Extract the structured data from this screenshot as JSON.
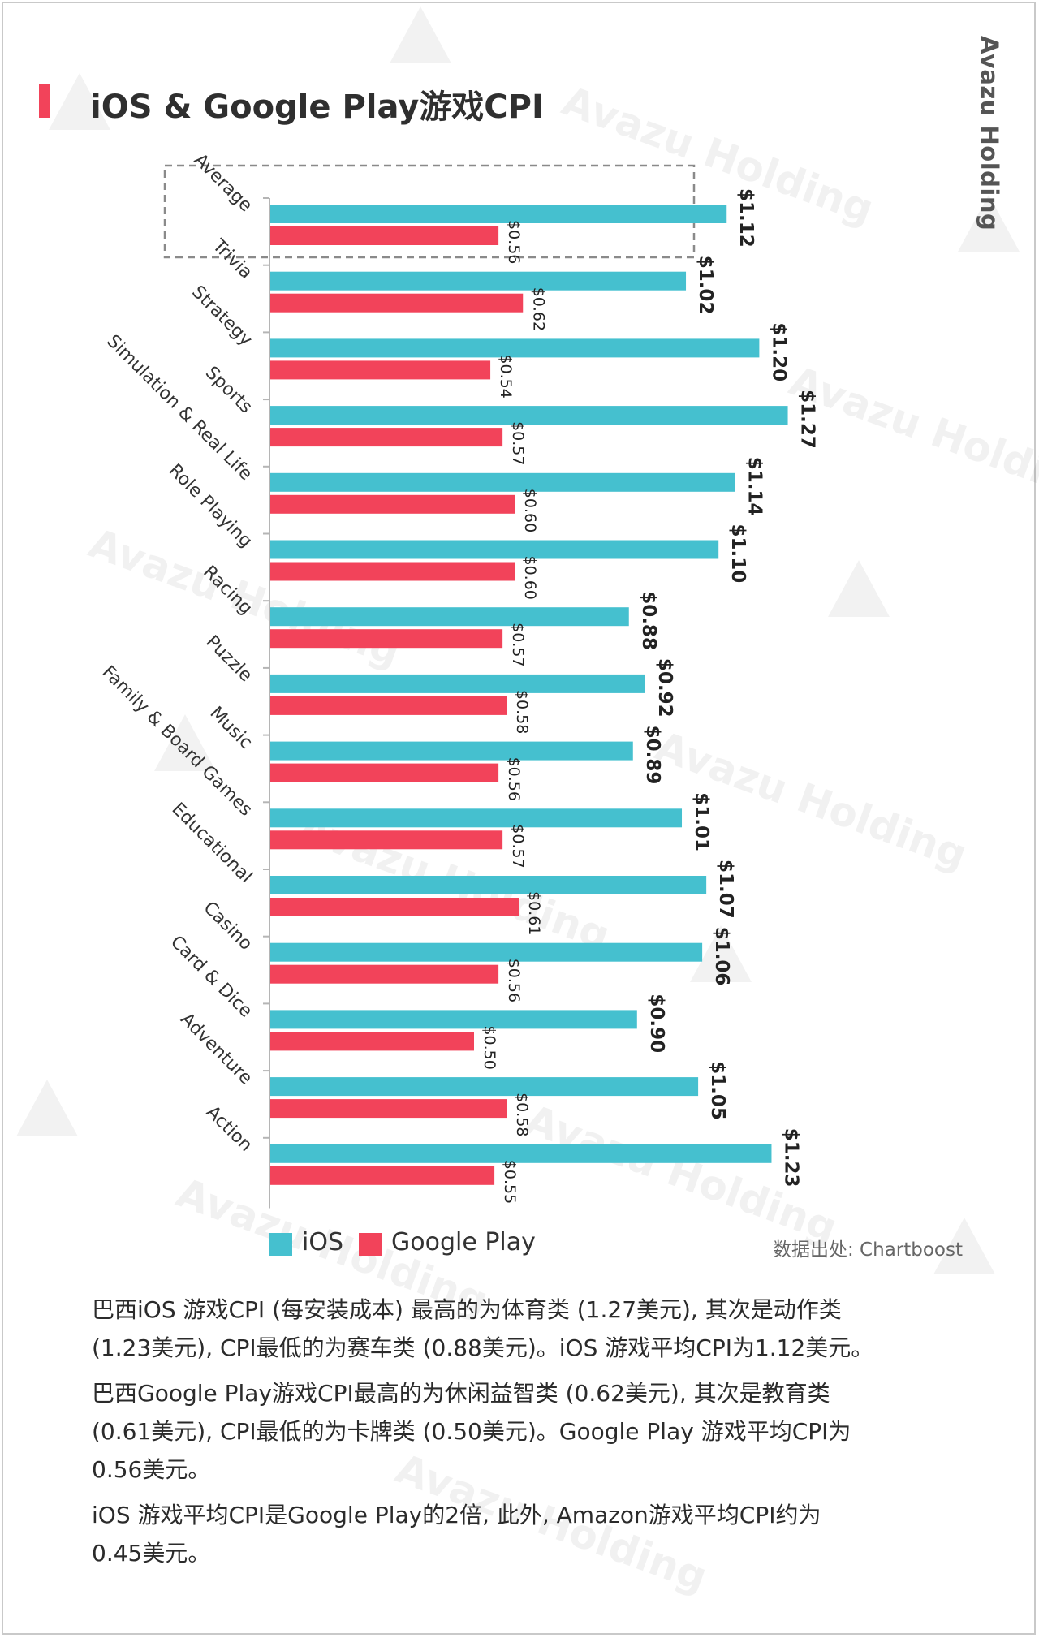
{
  "brand": "Avazu Holding",
  "title": "iOS & Google Play游戏CPI",
  "colors": {
    "ios": "#45c0cf",
    "google_play": "#f2435a",
    "accent": "#f2435a"
  },
  "chart_data": {
    "type": "bar",
    "orientation": "horizontal",
    "categories": [
      "Average",
      "Trivia",
      "Strategy",
      "Sports",
      "Simulation & Real Life",
      "Role Playing",
      "Racing",
      "Puzzle",
      "Music",
      "Family & Board Games",
      "Educational",
      "Casino",
      "Card & Dice",
      "Adventure",
      "Action"
    ],
    "series": [
      {
        "name": "iOS",
        "values": [
          1.12,
          1.02,
          1.2,
          1.27,
          1.14,
          1.1,
          0.88,
          0.92,
          0.89,
          1.01,
          1.07,
          1.06,
          0.9,
          1.05,
          1.23
        ],
        "labels": [
          "$1.12",
          "$1.02",
          "$1.20",
          "$1.27",
          "$1.14",
          "$1.10",
          "$0.88",
          "$0.92",
          "$0.89",
          "$1.01",
          "$1.07",
          "$1.06",
          "$0.90",
          "$1.05",
          "$1.23"
        ]
      },
      {
        "name": "Google Play",
        "values": [
          0.56,
          0.62,
          0.54,
          0.57,
          0.6,
          0.6,
          0.57,
          0.58,
          0.56,
          0.57,
          0.61,
          0.56,
          0.5,
          0.58,
          0.55
        ],
        "labels": [
          "$0.56",
          "$0.62",
          "$0.54",
          "$0.57",
          "$0.60",
          "$0.60",
          "$0.57",
          "$0.58",
          "$0.56",
          "$0.57",
          "$0.61",
          "$0.56",
          "$0.50",
          "$0.58",
          "$0.55"
        ]
      }
    ],
    "highlighted_category": "Average",
    "legend_position": "bottom-left",
    "grid": false
  },
  "legend": {
    "ios": "iOS",
    "google_play": "Google Play"
  },
  "source": "数据出处: Chartboost",
  "notes": [
    "巴西iOS 游戏CPI (每安装成本) 最高的为体育类 (1.27美元), 其次是动作类\n(1.23美元), CPI最低的为赛车类 (0.88美元)。iOS 游戏平均CPI为1.12美元。",
    "巴西Google Play游戏CPI最高的为休闲益智类 (0.62美元), 其次是教育类\n(0.61美元), CPI最低的为卡牌类 (0.50美元)。Google Play 游戏平均CPI为\n0.56美元。",
    "iOS 游戏平均CPI是Google Play的2倍, 此外, Amazon游戏平均CPI约为\n0.45美元。"
  ]
}
